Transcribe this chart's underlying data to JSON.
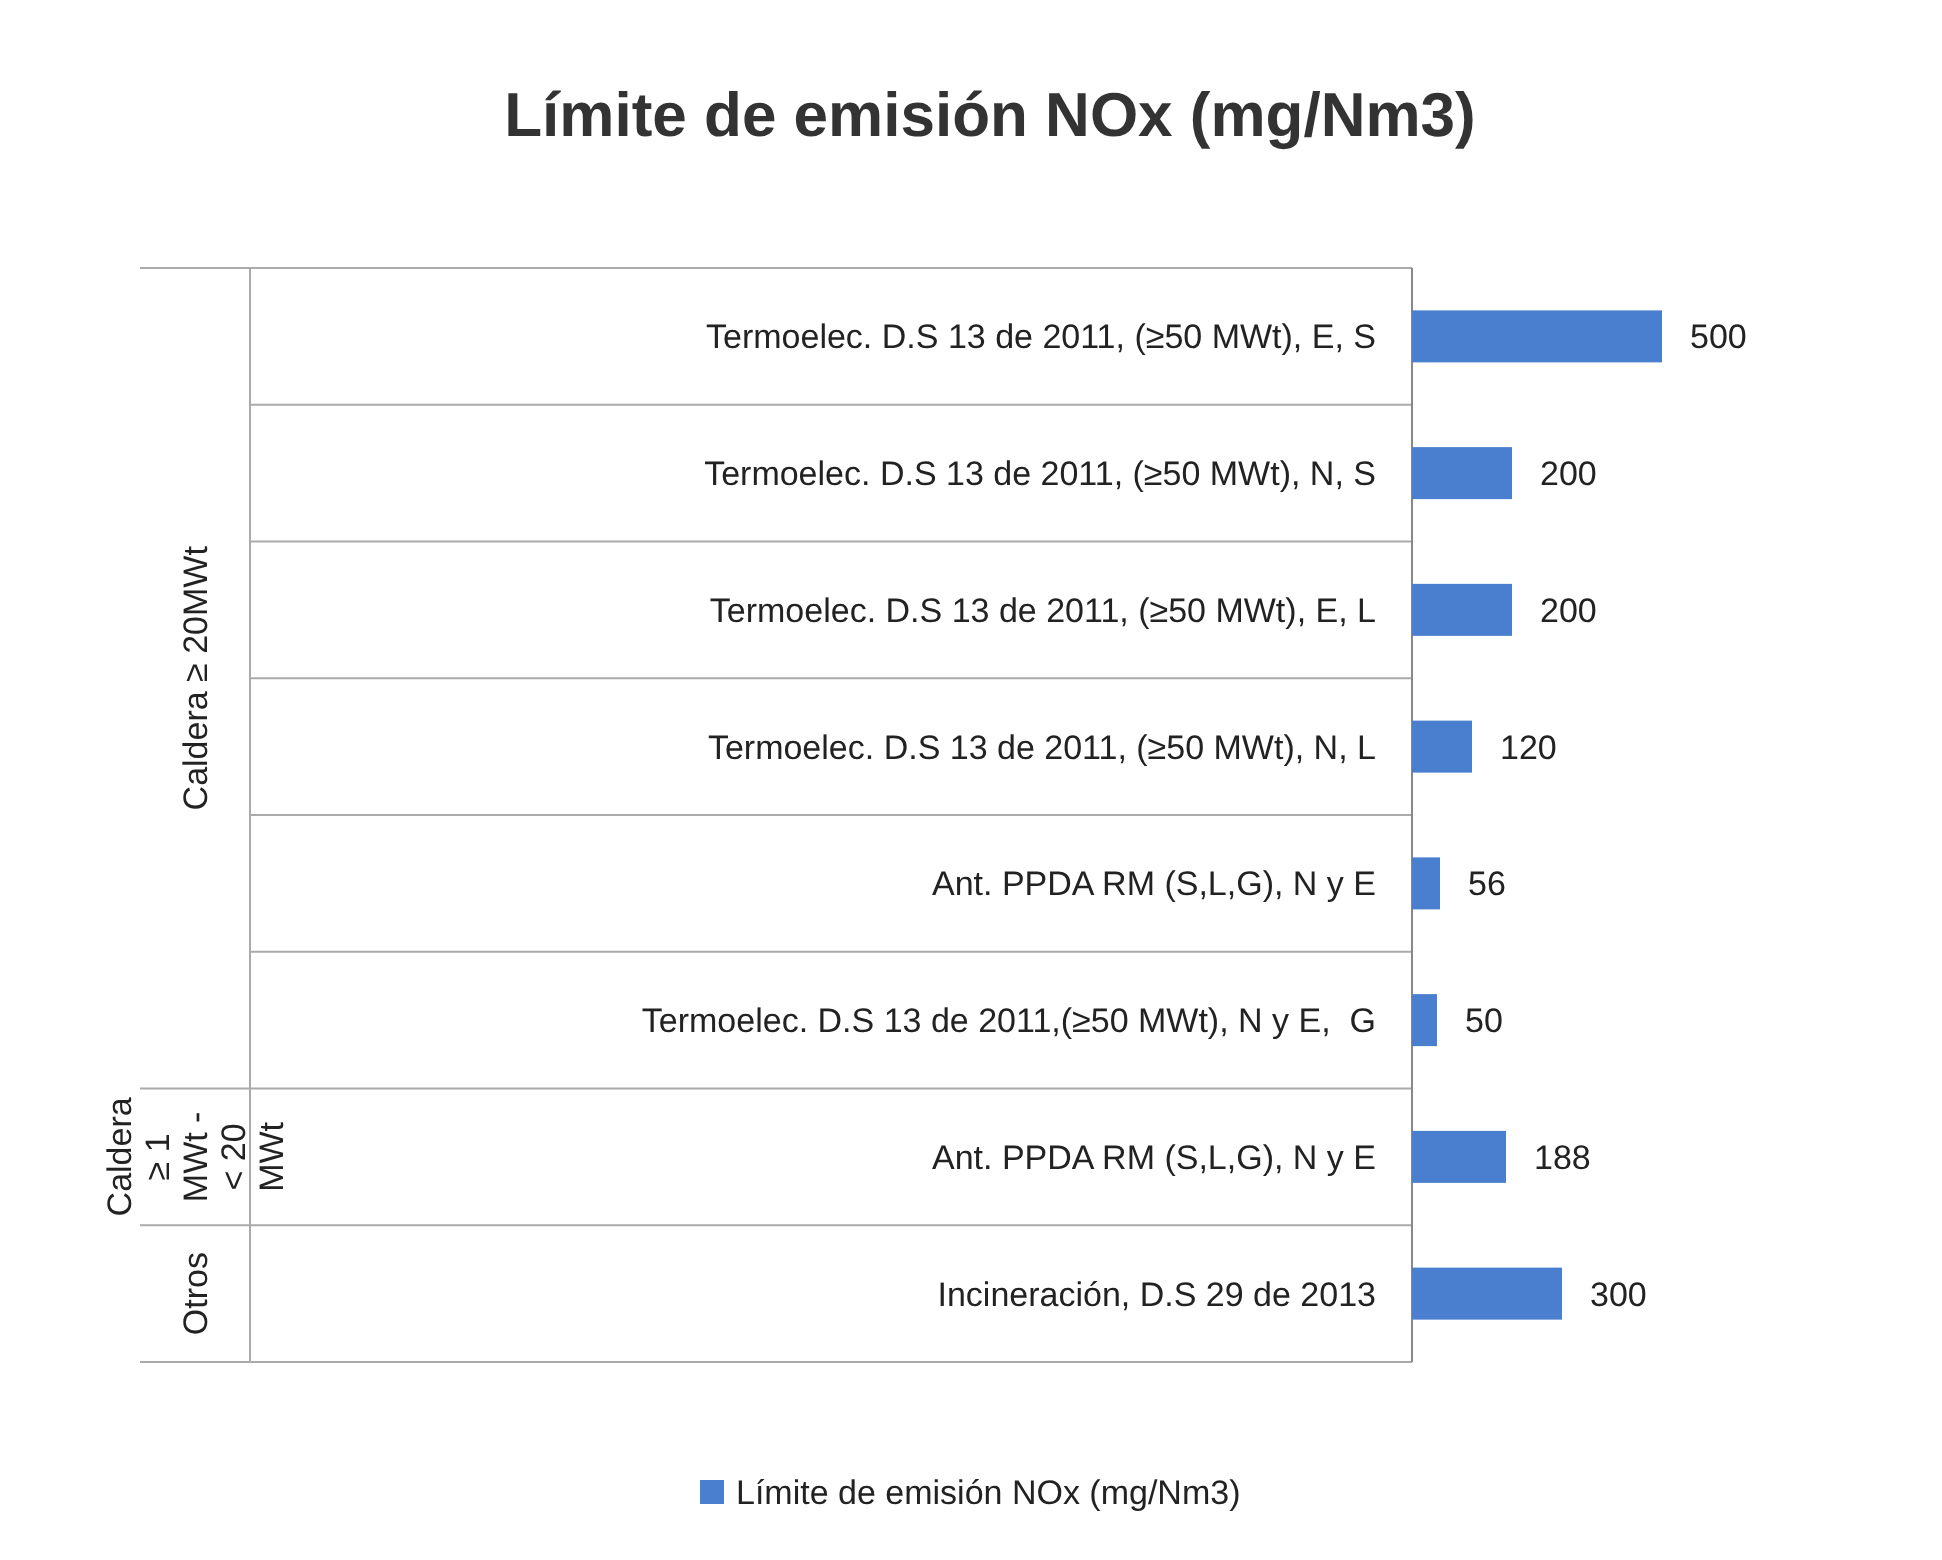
{
  "chart_data": {
    "type": "bar",
    "orientation": "horizontal",
    "title": "Límite de emisión NOx (mg/Nm3)",
    "categories": [
      "Termoelec. D.S 13 de 2011, (≥50 MWt), E, S",
      "Termoelec. D.S 13 de 2011, (≥50 MWt), N, S",
      "Termoelec. D.S 13 de 2011, (≥50 MWt), E, L",
      "Termoelec. D.S 13 de 2011, (≥50 MWt), N, L",
      "Ant. PPDA RM (S,L,G), N y E",
      "Termoelec. D.S 13 de 2011,(≥50 MWt), N y E,  G",
      "Ant. PPDA RM (S,L,G), N y E",
      "Incineración, D.S 29 de 2013"
    ],
    "series": [
      {
        "name": "Límite de emisión NOx (mg/Nm3)",
        "color": "#4a7fd0",
        "values": [
          500,
          200,
          200,
          120,
          56,
          50,
          188,
          300
        ]
      }
    ],
    "data_labels": true,
    "legend": "bottom",
    "annotations": [
      "Caldera ≥ 20MWt",
      "Caldera ≥ 1 MWt - < 20 MWt",
      "Otros"
    ]
  }
}
